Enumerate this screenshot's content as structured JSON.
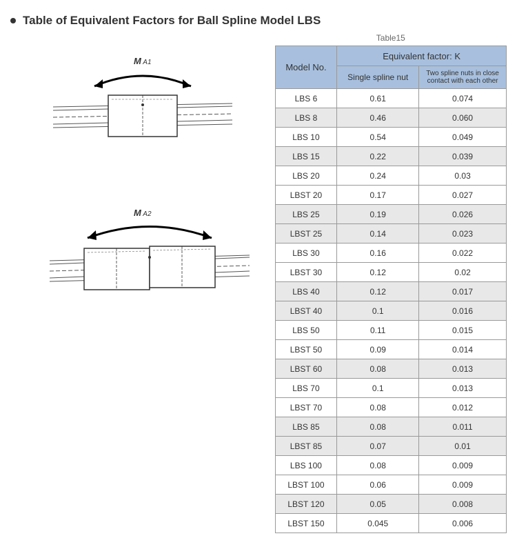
{
  "title": "Table of Equivalent Factors for Ball Spline Model LBS",
  "tableCaption": "Table15",
  "diagram1_label_main": "M",
  "diagram1_label_sub": " A1",
  "diagram2_label_main": "M",
  "diagram2_label_sub": " A2",
  "headers": {
    "model": "Model No.",
    "eqfactor": "Equivalent factor: K",
    "single": "Single spline nut",
    "double": "Two spline nuts in close contact with each other"
  },
  "groups": [
    {
      "shaded": false,
      "rows": [
        [
          "LBS 6",
          "0.61",
          "0.074"
        ]
      ]
    },
    {
      "shaded": true,
      "rows": [
        [
          "LBS 8",
          "0.46",
          "0.060"
        ]
      ]
    },
    {
      "shaded": false,
      "rows": [
        [
          "LBS 10",
          "0.54",
          "0.049"
        ]
      ]
    },
    {
      "shaded": true,
      "rows": [
        [
          "LBS 15",
          "0.22",
          "0.039"
        ]
      ]
    },
    {
      "shaded": false,
      "rows": [
        [
          "LBS 20",
          "0.24",
          "0.03"
        ],
        [
          "LBST 20",
          "0.17",
          "0.027"
        ]
      ]
    },
    {
      "shaded": true,
      "rows": [
        [
          "LBS 25",
          "0.19",
          "0.026"
        ],
        [
          "LBST 25",
          "0.14",
          "0.023"
        ]
      ]
    },
    {
      "shaded": false,
      "rows": [
        [
          "LBS 30",
          "0.16",
          "0.022"
        ],
        [
          "LBST 30",
          "0.12",
          "0.02"
        ]
      ]
    },
    {
      "shaded": true,
      "rows": [
        [
          "LBS 40",
          "0.12",
          "0.017"
        ],
        [
          "LBST 40",
          "0.1",
          "0.016"
        ]
      ]
    },
    {
      "shaded": false,
      "rows": [
        [
          "LBS 50",
          "0.11",
          "0.015"
        ],
        [
          "LBST 50",
          "0.09",
          "0.014"
        ]
      ]
    },
    {
      "shaded": true,
      "rows": [
        [
          "LBST 60",
          "0.08",
          "0.013"
        ]
      ]
    },
    {
      "shaded": false,
      "rows": [
        [
          "LBS 70",
          "0.1",
          "0.013"
        ],
        [
          "LBST 70",
          "0.08",
          "0.012"
        ]
      ]
    },
    {
      "shaded": true,
      "rows": [
        [
          "LBS 85",
          "0.08",
          "0.011"
        ],
        [
          "LBST 85",
          "0.07",
          "0.01"
        ]
      ]
    },
    {
      "shaded": false,
      "rows": [
        [
          "LBS 100",
          "0.08",
          "0.009"
        ],
        [
          "LBST 100",
          "0.06",
          "0.009"
        ]
      ]
    },
    {
      "shaded": true,
      "rows": [
        [
          "LBST 120",
          "0.05",
          "0.008"
        ]
      ]
    },
    {
      "shaded": false,
      "rows": [
        [
          "LBST 150",
          "0.045",
          "0.006"
        ]
      ]
    }
  ],
  "colors": {
    "header_bg": "#a8c0de",
    "shaded_bg": "#e8e8e8",
    "border": "#999999",
    "text": "#333333"
  }
}
